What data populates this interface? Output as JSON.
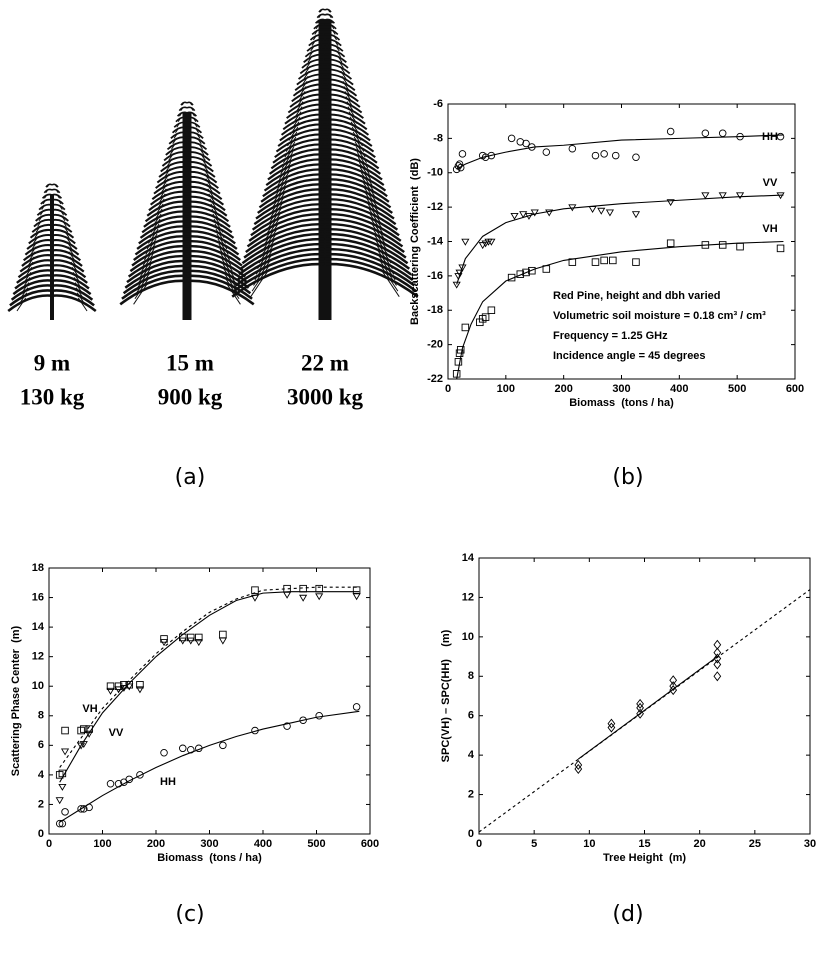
{
  "panel_a": {
    "trees": [
      {
        "height": "9 m",
        "mass": "130 kg"
      },
      {
        "height": "15 m",
        "mass": "900 kg"
      },
      {
        "height": "22 m",
        "mass": "3000 kg"
      }
    ],
    "caption": "(a)"
  },
  "chart_data": [
    {
      "type": "scatter",
      "caption": "(b)",
      "xlabel": "Biomass  (tons / ha)",
      "ylabel": "Backscattering Coefficient  (dB)",
      "xlim": [
        0,
        600
      ],
      "ylim": [
        -22,
        -6
      ],
      "xticks": [
        0,
        100,
        200,
        300,
        400,
        500,
        600
      ],
      "yticks": [
        -22,
        -20,
        -18,
        -16,
        -14,
        -12,
        -10,
        -8,
        -6
      ],
      "annotations": [
        "Red Pine, height and dbh varied",
        "Volumetric soil moisture = 0.18 cm³ / cm³",
        "Frequency = 1.25 GHz",
        "Incidence angle = 45 degrees"
      ],
      "series": [
        {
          "name": "HH",
          "marker": "circle",
          "x": [
            15,
            18,
            20,
            22,
            25,
            60,
            65,
            75,
            110,
            125,
            135,
            145,
            170,
            215,
            255,
            270,
            290,
            325,
            385,
            445,
            475,
            505,
            575
          ],
          "values": [
            -9.8,
            -9.6,
            -9.5,
            -9.7,
            -8.9,
            -9.0,
            -9.1,
            -9.0,
            -8.0,
            -8.2,
            -8.3,
            -8.5,
            -8.8,
            -8.6,
            -9.0,
            -8.9,
            -9.0,
            -9.1,
            -7.6,
            -7.7,
            -7.7,
            -7.9,
            -7.9
          ],
          "fits": [
            {
              "x": [
                15,
                30,
                60,
                100,
                150,
                200,
                300,
                400,
                500,
                580
              ],
              "values": [
                -9.8,
                -9.5,
                -9.1,
                -8.8,
                -8.5,
                -8.4,
                -8.1,
                -8.0,
                -7.9,
                -7.8
              ],
              "dashed": false
            }
          ]
        },
        {
          "name": "VV",
          "marker": "triangle",
          "x": [
            15,
            18,
            20,
            25,
            30,
            60,
            65,
            70,
            75,
            115,
            130,
            140,
            150,
            175,
            215,
            250,
            265,
            280,
            325,
            385,
            445,
            475,
            505,
            575
          ],
          "values": [
            -16.5,
            -16.0,
            -15.8,
            -15.5,
            -14.0,
            -14.2,
            -14.1,
            -14.0,
            -14.0,
            -12.5,
            -12.4,
            -12.5,
            -12.3,
            -12.3,
            -12.0,
            -12.1,
            -12.2,
            -12.3,
            -12.4,
            -11.7,
            -11.3,
            -11.3,
            -11.3,
            -11.3
          ],
          "fits": [
            {
              "x": [
                15,
                30,
                60,
                100,
                150,
                200,
                300,
                400,
                500,
                580
              ],
              "values": [
                -16.5,
                -15.0,
                -13.7,
                -12.9,
                -12.4,
                -12.1,
                -11.8,
                -11.6,
                -11.4,
                -11.3
              ],
              "dashed": false
            }
          ]
        },
        {
          "name": "VH",
          "marker": "square",
          "x": [
            15,
            18,
            20,
            22,
            30,
            55,
            60,
            65,
            75,
            110,
            125,
            135,
            145,
            170,
            215,
            255,
            270,
            285,
            325,
            385,
            445,
            475,
            505,
            575
          ],
          "values": [
            -21.7,
            -21.0,
            -20.5,
            -20.3,
            -19.0,
            -18.7,
            -18.5,
            -18.4,
            -18.0,
            -16.1,
            -15.9,
            -15.8,
            -15.7,
            -15.6,
            -15.2,
            -15.2,
            -15.1,
            -15.1,
            -15.2,
            -14.1,
            -14.2,
            -14.2,
            -14.3,
            -14.4
          ],
          "fits": [
            {
              "x": [
                15,
                25,
                40,
                60,
                100,
                150,
                200,
                300,
                400,
                500,
                580
              ],
              "values": [
                -22,
                -20.2,
                -18.8,
                -17.5,
                -16.3,
                -15.6,
                -15.1,
                -14.6,
                -14.3,
                -14.1,
                -14.0
              ],
              "dashed": false
            }
          ]
        }
      ]
    },
    {
      "type": "scatter",
      "caption": "(c)",
      "xlabel": "Biomass  (tons / ha)",
      "ylabel": "Scattering Phase Center  (m)",
      "xlim": [
        0,
        600
      ],
      "ylim": [
        0,
        18
      ],
      "xticks": [
        0,
        100,
        200,
        300,
        400,
        500,
        600
      ],
      "yticks": [
        0,
        2,
        4,
        6,
        8,
        10,
        12,
        14,
        16,
        18
      ],
      "series": [
        {
          "name": "VH",
          "marker": "square",
          "x": [
            20,
            25,
            30,
            60,
            65,
            75,
            115,
            130,
            140,
            150,
            170,
            215,
            250,
            265,
            280,
            325,
            385,
            445,
            475,
            505,
            575
          ],
          "values": [
            4.0,
            4.1,
            7.0,
            7.0,
            7.1,
            7.1,
            10.0,
            10.0,
            10.1,
            10.1,
            10.1,
            13.2,
            13.3,
            13.3,
            13.3,
            13.5,
            16.5,
            16.6,
            16.6,
            16.6,
            16.5
          ],
          "fits": [
            {
              "x": [
                20,
                60,
                100,
                150,
                200,
                250,
                300,
                350,
                400,
                450,
                500,
                580
              ],
              "values": [
                4.5,
                6.5,
                8.5,
                10.4,
                12.2,
                13.7,
                15.0,
                15.9,
                16.5,
                16.6,
                16.7,
                16.7
              ],
              "dashed": true
            }
          ]
        },
        {
          "name": "VV",
          "marker": "triangle",
          "x": [
            20,
            25,
            30,
            60,
            65,
            75,
            115,
            130,
            140,
            150,
            170,
            215,
            250,
            265,
            280,
            325,
            385,
            445,
            475,
            505,
            575
          ],
          "values": [
            2.3,
            3.2,
            5.6,
            6.0,
            6.1,
            6.8,
            9.7,
            9.8,
            9.9,
            10.0,
            9.8,
            13.0,
            13.1,
            13.1,
            13.0,
            13.1,
            16.0,
            16.2,
            16.0,
            16.1,
            16.1
          ],
          "fits": [
            {
              "x": [
                20,
                60,
                100,
                150,
                200,
                250,
                300,
                350,
                400,
                450,
                500,
                580
              ],
              "values": [
                3.5,
                6.0,
                8.2,
                10.2,
                12.0,
                13.5,
                14.8,
                15.8,
                16.3,
                16.4,
                16.4,
                16.4
              ],
              "dashed": false
            }
          ]
        },
        {
          "name": "HH",
          "marker": "circle",
          "x": [
            20,
            25,
            30,
            60,
            65,
            75,
            115,
            130,
            140,
            150,
            170,
            215,
            250,
            265,
            280,
            325,
            385,
            445,
            475,
            505,
            575
          ],
          "values": [
            0.7,
            0.7,
            1.5,
            1.7,
            1.7,
            1.8,
            3.4,
            3.4,
            3.5,
            3.7,
            4.0,
            5.5,
            5.8,
            5.7,
            5.8,
            6.0,
            7.0,
            7.3,
            7.7,
            8.0,
            8.6
          ],
          "fits": [
            {
              "x": [
                20,
                60,
                100,
                150,
                200,
                250,
                300,
                350,
                400,
                450,
                500,
                580
              ],
              "values": [
                0.8,
                1.7,
                2.6,
                3.6,
                4.5,
                5.3,
                6.0,
                6.6,
                7.1,
                7.5,
                7.9,
                8.3
              ],
              "dashed": false
            }
          ]
        }
      ]
    },
    {
      "type": "scatter",
      "caption": "(d)",
      "xlabel": "Tree Height  (m)",
      "ylabel": "SPC(VH) – SPC(HH)    (m)",
      "xlim": [
        0,
        30
      ],
      "ylim": [
        0,
        14
      ],
      "xticks": [
        0,
        5,
        10,
        15,
        20,
        25,
        30
      ],
      "yticks": [
        0,
        2,
        4,
        6,
        8,
        10,
        12,
        14
      ],
      "series": [
        {
          "marker": "diamond",
          "x": [
            9,
            9,
            12,
            12,
            14.6,
            14.6,
            14.6,
            17.6,
            17.6,
            17.6,
            21.6,
            21.6,
            21.6,
            21.6,
            21.6
          ],
          "values": [
            3.3,
            3.5,
            5.4,
            5.6,
            6.1,
            6.4,
            6.6,
            7.3,
            7.5,
            7.8,
            8.0,
            8.6,
            8.9,
            9.2,
            9.6
          ],
          "fits": [
            {
              "x": [
                0,
                30
              ],
              "values": [
                0.1,
                12.4
              ],
              "dashed": true
            },
            {
              "x": [
                9,
                21.6
              ],
              "values": [
                3.8,
                9.0
              ],
              "dashed": false
            }
          ]
        }
      ]
    }
  ]
}
